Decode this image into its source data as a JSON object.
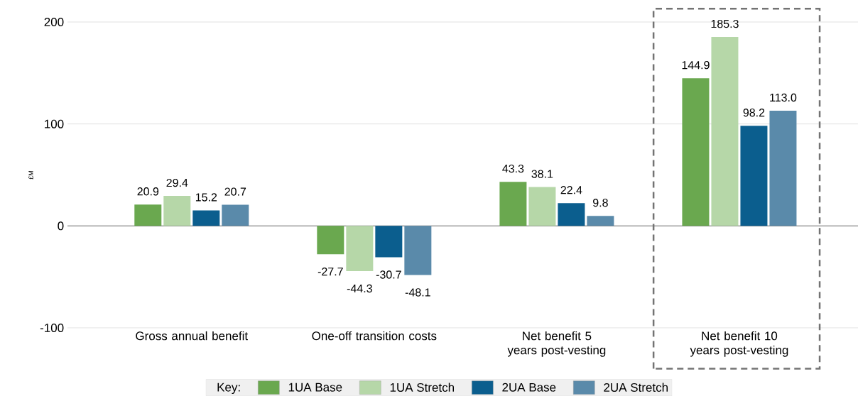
{
  "chart_data": {
    "type": "bar",
    "ylabel": "£M",
    "legend_title": "Key:",
    "categories": [
      "Gross annual benefit",
      "One-off transition costs",
      "Net benefit 5 years post-vesting",
      "Net benefit 10 years post-vesting"
    ],
    "series": [
      {
        "name": "1UA Base",
        "color": "#6aa84f",
        "values": [
          20.9,
          -27.7,
          43.3,
          144.9
        ],
        "value_labels": [
          "20.9",
          "-27.7",
          "43.3",
          "144.9"
        ]
      },
      {
        "name": "1UA Stretch",
        "color": "#b6d7a8",
        "values": [
          29.4,
          -44.3,
          38.1,
          185.3
        ],
        "value_labels": [
          "29.4",
          "-44.3",
          "38.1",
          "185.3"
        ]
      },
      {
        "name": "2UA Base",
        "color": "#0b5e8e",
        "values": [
          15.2,
          -30.7,
          22.4,
          98.2
        ],
        "value_labels": [
          "15.2",
          "-30.7",
          "22.4",
          "98.2"
        ]
      },
      {
        "name": "2UA Stretch",
        "color": "#5a8aaa",
        "values": [
          20.7,
          -48.1,
          9.8,
          113.0
        ],
        "value_labels": [
          "20.7",
          "-48.1",
          "9.8",
          "113.0"
        ]
      }
    ],
    "ylim": [
      -100,
      200
    ],
    "yticks": [
      -100,
      0,
      100,
      200
    ],
    "grid": "y",
    "legend": "bottom"
  }
}
